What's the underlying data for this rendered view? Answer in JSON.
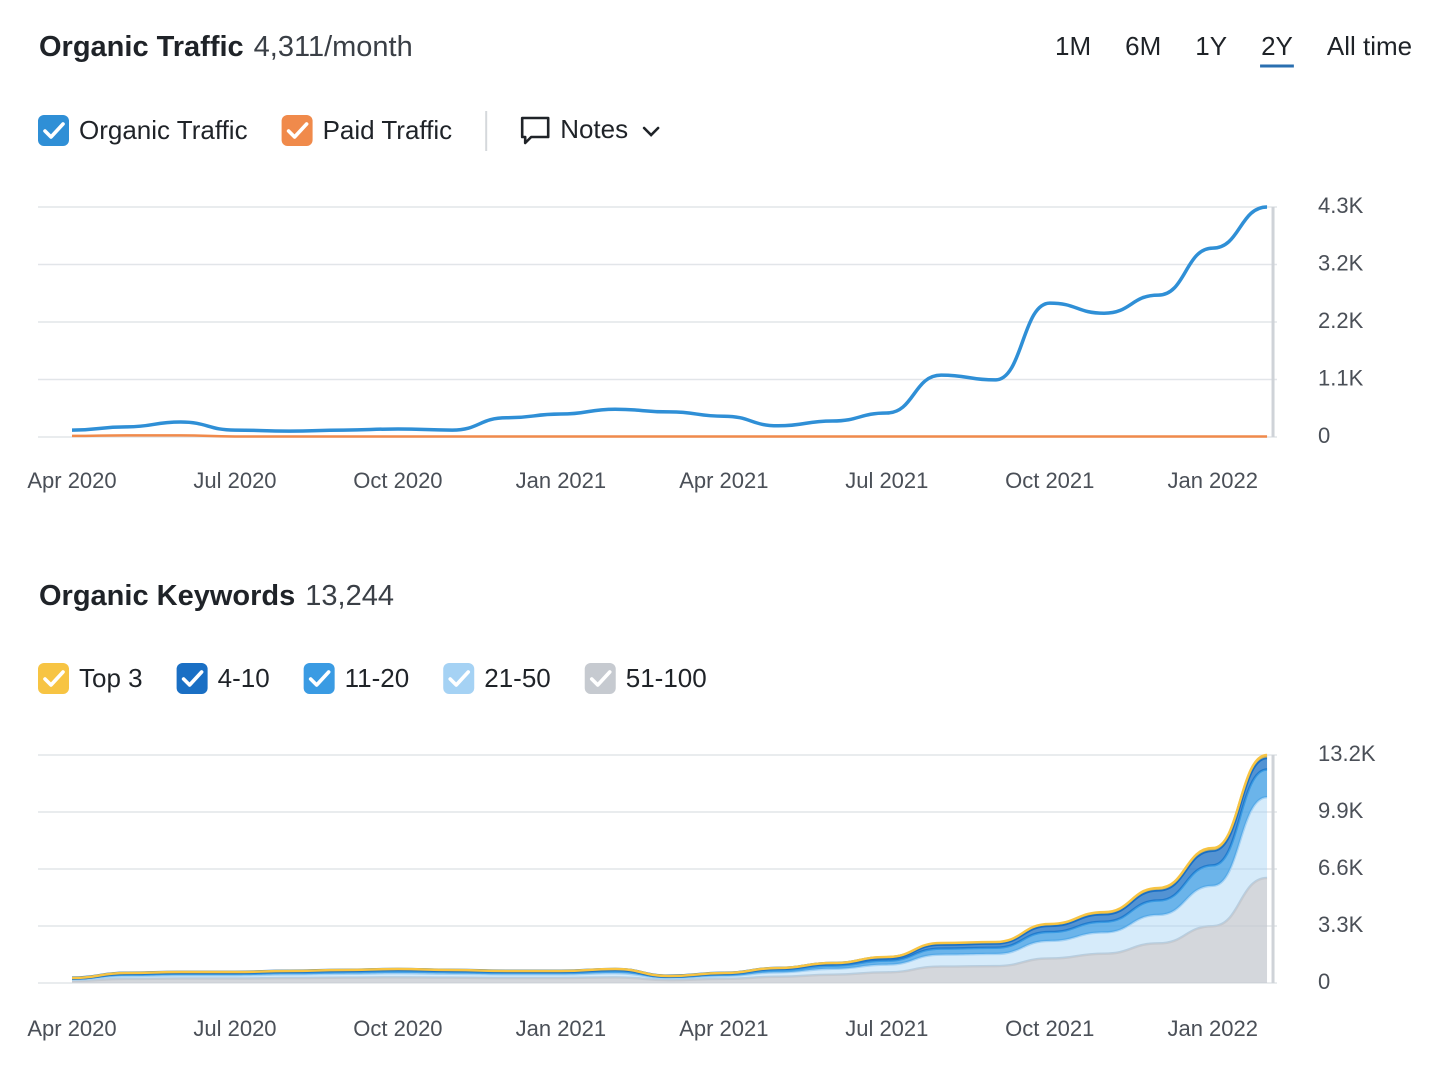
{
  "controls": {
    "ranges": [
      "1M",
      "6M",
      "1Y",
      "2Y",
      "All time"
    ],
    "selected_range": "2Y",
    "notes": "Notes"
  },
  "chart_data": [
    {
      "type": "line",
      "title": "Organic Traffic",
      "subtitle": "4,311/month",
      "categories": [
        "Apr 2020",
        null,
        null,
        "Jul 2020",
        null,
        null,
        "Oct 2020",
        null,
        null,
        "Jan 2021",
        null,
        null,
        "Apr 2021",
        null,
        null,
        "Jul 2021",
        null,
        null,
        "Oct 2021",
        null,
        null,
        "Jan 2022",
        null
      ],
      "series": [
        {
          "name": "Organic Traffic",
          "color": "#2f8fd6",
          "values": [
            130,
            190,
            280,
            130,
            110,
            130,
            150,
            130,
            360,
            430,
            520,
            470,
            390,
            210,
            300,
            450,
            1160,
            1070,
            2510,
            2320,
            2660,
            3540,
            4311
          ]
        },
        {
          "name": "Paid Traffic",
          "color": "#f08a4b",
          "values": [
            20,
            30,
            30,
            10,
            10,
            10,
            10,
            10,
            10,
            10,
            10,
            10,
            10,
            10,
            10,
            10,
            10,
            10,
            10,
            10,
            10,
            10,
            10
          ]
        }
      ],
      "ylim": [
        0,
        4311
      ],
      "yticks": [
        0,
        {
          "value": 1077.75,
          "label": "1.1K"
        },
        {
          "value": 2155.5,
          "label": "2.2K"
        },
        {
          "value": 3233.25,
          "label": "3.2K"
        },
        {
          "value": 4311,
          "label": "4.3K"
        }
      ],
      "grid": true
    },
    {
      "type": "area",
      "stacked": true,
      "title": "Organic Keywords",
      "subtitle": "13,244",
      "categories": [
        "Apr 2020",
        null,
        null,
        "Jul 2020",
        null,
        null,
        "Oct 2020",
        null,
        null,
        "Jan 2021",
        null,
        null,
        "Apr 2021",
        null,
        null,
        "Jul 2021",
        null,
        null,
        "Oct 2021",
        null,
        null,
        "Jan 2022",
        null
      ],
      "series": [
        {
          "name": "Top 3",
          "color": "#f7c443",
          "values": [
            5,
            15,
            20,
            20,
            15,
            20,
            25,
            20,
            15,
            15,
            25,
            10,
            15,
            20,
            25,
            40,
            60,
            60,
            80,
            100,
            110,
            130,
            144
          ]
        },
        {
          "name": "4-10",
          "color": "#1a6fc4",
          "values": [
            30,
            65,
            70,
            70,
            75,
            80,
            90,
            80,
            75,
            75,
            90,
            45,
            65,
            100,
            130,
            170,
            260,
            270,
            390,
            460,
            620,
            880,
            700
          ]
        },
        {
          "name": "11-20",
          "color": "#3a9be3",
          "values": [
            45,
            90,
            100,
            100,
            110,
            115,
            125,
            115,
            110,
            110,
            125,
            65,
            90,
            130,
            175,
            230,
            350,
            360,
            510,
            620,
            830,
            1180,
            1600
          ]
        },
        {
          "name": "21-50",
          "color": "#a5d2f4",
          "values": [
            90,
            170,
            190,
            190,
            210,
            230,
            240,
            230,
            210,
            210,
            240,
            120,
            170,
            260,
            350,
            450,
            700,
            710,
            1030,
            1240,
            1660,
            2350,
            4700
          ]
        },
        {
          "name": "51-100",
          "color": "#c6cad0",
          "values": [
            120,
            240,
            260,
            260,
            290,
            310,
            330,
            310,
            290,
            290,
            330,
            170,
            240,
            360,
            480,
            620,
            950,
            980,
            1420,
            1700,
            2300,
            3300,
            6100
          ]
        }
      ],
      "ylim": [
        0,
        13244
      ],
      "yticks": [
        0,
        {
          "value": 3311,
          "label": "3.3K"
        },
        {
          "value": 6622,
          "label": "6.6K"
        },
        {
          "value": 9933,
          "label": "9.9K"
        },
        {
          "value": 13244,
          "label": "13.2K"
        }
      ],
      "grid": true
    }
  ]
}
